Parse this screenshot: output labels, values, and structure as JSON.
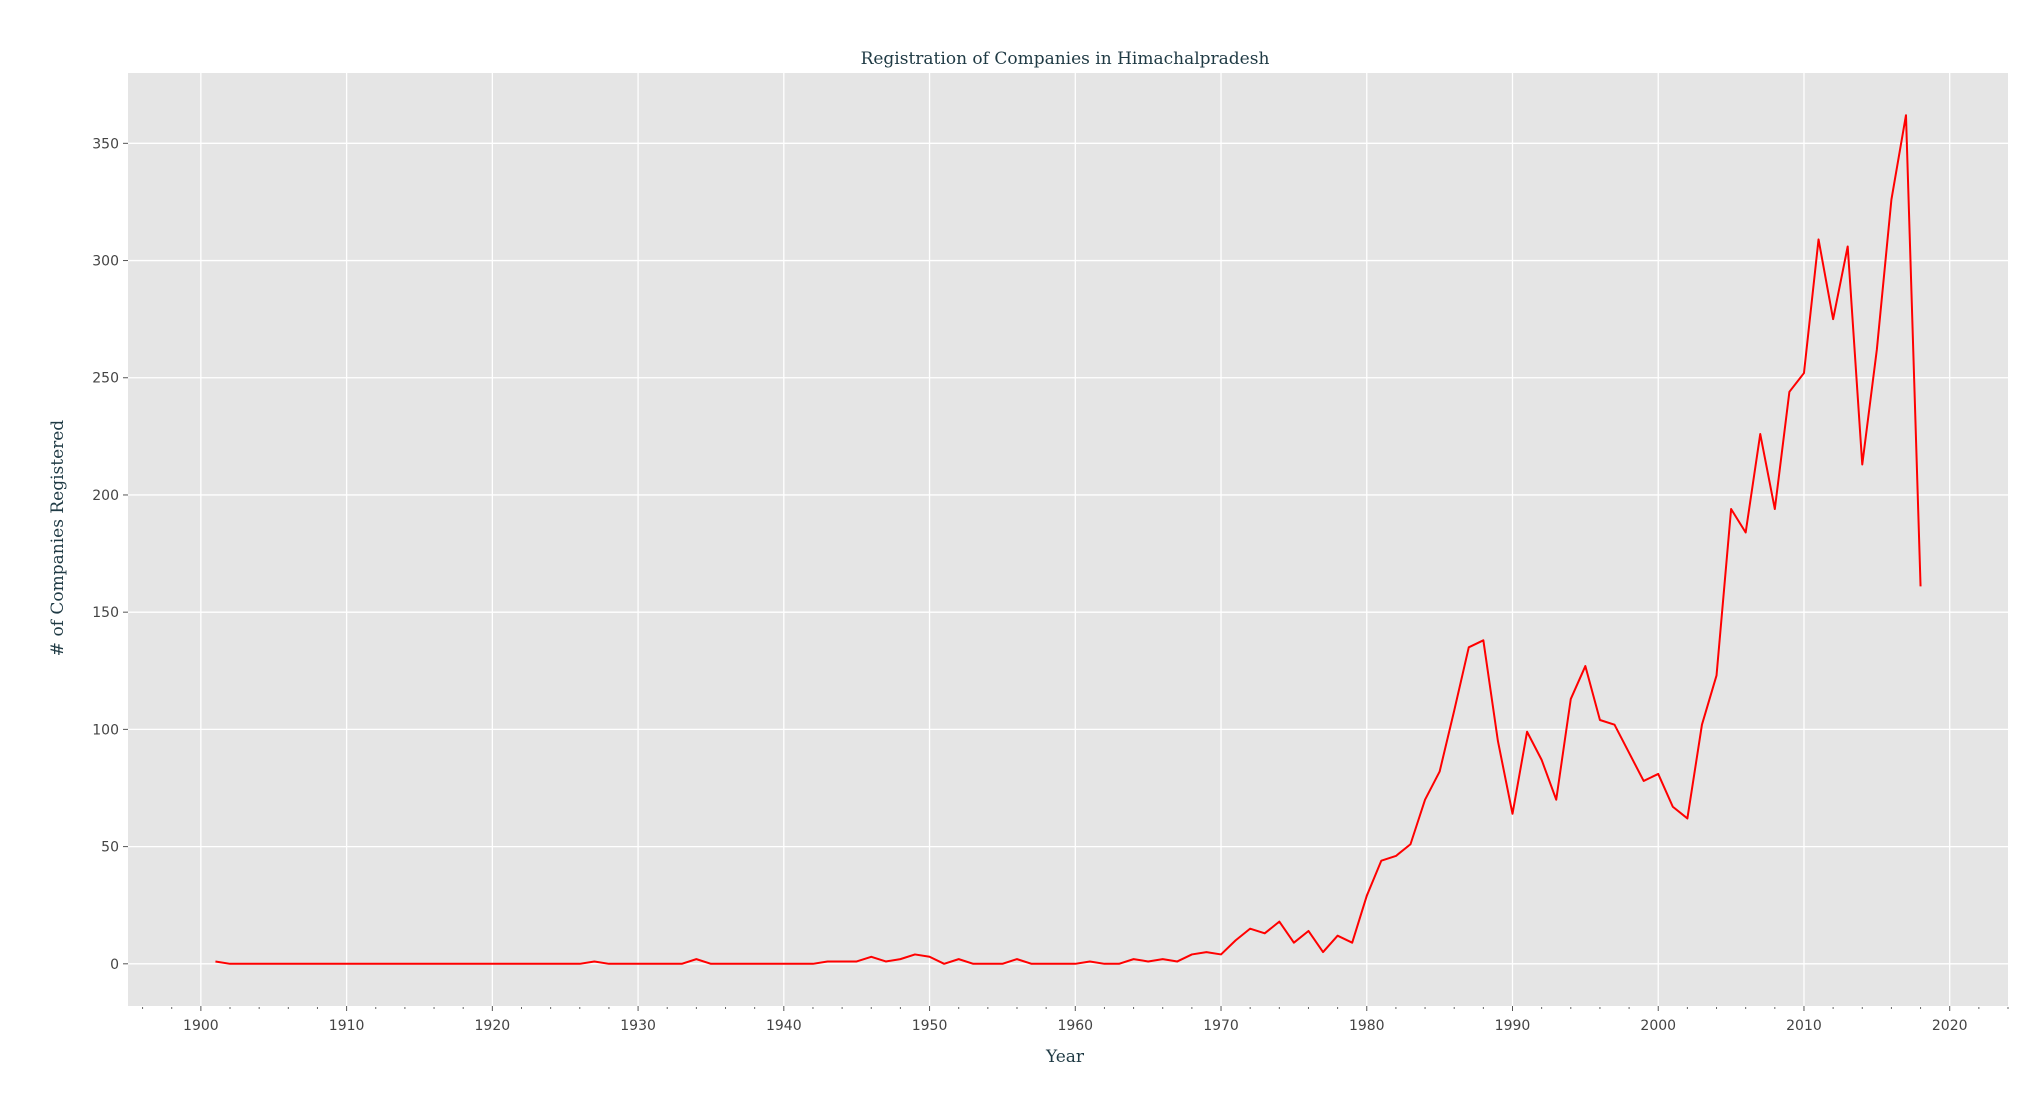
{
  "chart_data": {
    "type": "line",
    "title": "Registration of Companies in Himachalpradesh",
    "xlabel": "Year",
    "ylabel": "# of Companies Registered",
    "xlim": [
      1895,
      2024
    ],
    "ylim": [
      -18,
      380
    ],
    "x_ticks": [
      "1900",
      "1910",
      "1920",
      "1930",
      "1940",
      "1950",
      "1960",
      "1970",
      "1980",
      "1990",
      "2000",
      "2010",
      "2020"
    ],
    "y_ticks": [
      "0",
      "50",
      "100",
      "150",
      "200",
      "250",
      "300",
      "350"
    ],
    "grid": true,
    "series": [
      {
        "color": "#ff0000",
        "x": [
          1901,
          1902,
          1903,
          1904,
          1905,
          1906,
          1907,
          1908,
          1909,
          1910,
          1911,
          1912,
          1913,
          1914,
          1915,
          1916,
          1917,
          1918,
          1919,
          1920,
          1921,
          1922,
          1923,
          1924,
          1925,
          1926,
          1927,
          1928,
          1929,
          1930,
          1931,
          1932,
          1933,
          1934,
          1935,
          1936,
          1937,
          1938,
          1939,
          1940,
          1941,
          1942,
          1943,
          1944,
          1945,
          1946,
          1947,
          1948,
          1949,
          1950,
          1951,
          1952,
          1953,
          1954,
          1955,
          1956,
          1957,
          1958,
          1959,
          1960,
          1961,
          1962,
          1963,
          1964,
          1965,
          1966,
          1967,
          1968,
          1969,
          1970,
          1971,
          1972,
          1973,
          1974,
          1975,
          1976,
          1977,
          1978,
          1979,
          1980,
          1981,
          1982,
          1983,
          1984,
          1985,
          1986,
          1987,
          1988,
          1989,
          1990,
          1991,
          1992,
          1993,
          1994,
          1995,
          1996,
          1997,
          1998,
          1999,
          2000,
          2001,
          2002,
          2003,
          2004,
          2005,
          2006,
          2007,
          2008,
          2009,
          2010,
          2011,
          2012,
          2013,
          2014,
          2015,
          2016,
          2017,
          2018
        ],
        "y": [
          1,
          0,
          0,
          0,
          0,
          0,
          0,
          0,
          0,
          0,
          0,
          0,
          0,
          0,
          0,
          0,
          0,
          0,
          0,
          0,
          0,
          0,
          0,
          0,
          0,
          0,
          1,
          0,
          0,
          0,
          0,
          0,
          0,
          2,
          0,
          0,
          0,
          0,
          0,
          0,
          0,
          0,
          1,
          1,
          1,
          3,
          1,
          2,
          4,
          3,
          0,
          2,
          0,
          0,
          0,
          2,
          0,
          0,
          0,
          0,
          1,
          0,
          0,
          2,
          1,
          2,
          1,
          4,
          5,
          4,
          10,
          15,
          13,
          18,
          9,
          14,
          5,
          12,
          9,
          29,
          44,
          46,
          51,
          70,
          82,
          108,
          135,
          138,
          95,
          64,
          99,
          87,
          70,
          113,
          127,
          104,
          102,
          90,
          78,
          81,
          67,
          62,
          102,
          123,
          194,
          184,
          226,
          194,
          244,
          252,
          309,
          275,
          306,
          213,
          262,
          326,
          362,
          161
        ]
      }
    ]
  }
}
